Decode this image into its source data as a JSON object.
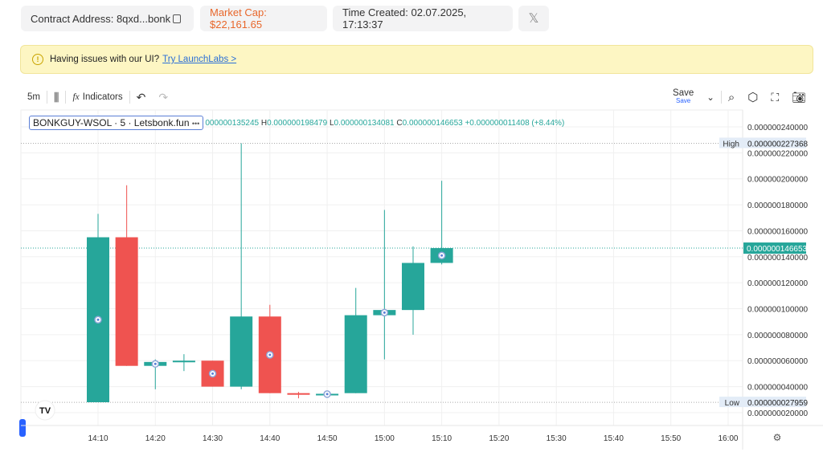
{
  "header": {
    "contract": "Contract Address: 8qxd...bonk",
    "market_cap": "Market Cap: $22,161.65",
    "time_created": "Time Created: 02.07.2025, 17:13:37",
    "x_icon": "x-logo-icon"
  },
  "banner": {
    "text": "Having issues with our UI?",
    "link": "Try LaunchLabs >"
  },
  "toolbar": {
    "interval": "5m",
    "indicators": "Indicators",
    "save": "Save",
    "save_sub": "Save"
  },
  "legend": {
    "symbol": "BONKGUY-WSOL · 5 · Letsbonk.fun",
    "more": "•••",
    "o": "000000135245",
    "h_label": "H",
    "h": "0.000000198479",
    "l_label": "L",
    "l": "0.000000134081",
    "c_label": "C",
    "c": "0.000000146653",
    "change": "+0.000000011408 (+8.44%)"
  },
  "chart_data": {
    "type": "candlestick",
    "ylim": [
      1.2e-08,
      2.5e-07
    ],
    "y_ticks": [
      "0.000000240000",
      "0.000000220000",
      "0.000000200000",
      "0.000000180000",
      "0.000000160000",
      "0.000000140000",
      "0.000000120000",
      "0.000000100000",
      "0.000000080000",
      "0.000000060000",
      "0.000000040000",
      "0.000000020000"
    ],
    "x_ticks": [
      "14:10",
      "14:20",
      "14:30",
      "14:40",
      "14:50",
      "15:00",
      "15:10",
      "15:20",
      "15:30",
      "15:40",
      "15:50",
      "16:00"
    ],
    "high_label": "High",
    "high_value": "0.000000227368",
    "low_label": "Low",
    "low_value": "0.000000027959",
    "last_price": "0.000000146653",
    "up_color": "#26a69a",
    "down_color": "#ef5350",
    "candles": [
      {
        "time": "14:10",
        "open": 28,
        "high": 173,
        "low": 28,
        "close": 155,
        "marker": true
      },
      {
        "time": "14:15",
        "open": 155,
        "high": 195,
        "low": 56,
        "close": 56
      },
      {
        "time": "14:20",
        "open": 56,
        "high": 61,
        "low": 38,
        "close": 59,
        "marker": true
      },
      {
        "time": "14:25",
        "open": 59,
        "high": 65,
        "low": 52,
        "close": 60
      },
      {
        "time": "14:30",
        "open": 60,
        "high": 60,
        "low": 40,
        "close": 40,
        "marker": true
      },
      {
        "time": "14:35",
        "open": 40,
        "high": 227.368,
        "low": 38,
        "close": 94
      },
      {
        "time": "14:40",
        "open": 94,
        "high": 103,
        "low": 35,
        "close": 35,
        "marker": true
      },
      {
        "time": "14:45",
        "open": 35,
        "high": 36,
        "low": 31,
        "close": 34
      },
      {
        "time": "14:50",
        "open": 34,
        "high": 35,
        "low": 33,
        "close": 34.5,
        "marker": true
      },
      {
        "time": "14:55",
        "open": 35,
        "high": 116,
        "low": 35,
        "close": 95
      },
      {
        "time": "15:00",
        "open": 95,
        "high": 176,
        "low": 61,
        "close": 99,
        "marker": true
      },
      {
        "time": "15:05",
        "open": 99,
        "high": 148,
        "low": 80,
        "close": 135.245
      },
      {
        "time": "15:10",
        "open": 135.245,
        "high": 198.479,
        "low": 134.081,
        "close": 146.653,
        "marker": true
      }
    ],
    "value_unit_note": "candle values in units of 1e-9"
  }
}
